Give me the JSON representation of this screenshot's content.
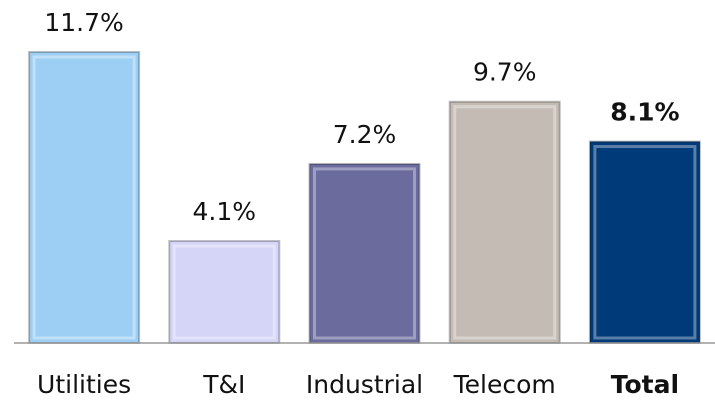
{
  "chart_data": {
    "type": "bar",
    "categories": [
      "Utilities",
      "T&I",
      "Industrial",
      "Telecom",
      "Total"
    ],
    "values": [
      11.7,
      4.1,
      7.2,
      9.7,
      8.1
    ],
    "value_labels": [
      "11.7%",
      "4.1%",
      "7.2%",
      "9.7%",
      "8.1%"
    ],
    "colors": [
      "#9dcff5",
      "#d5d5f7",
      "#6b6b9e",
      "#c4bcb4",
      "#003a78"
    ],
    "bold": [
      false,
      false,
      false,
      false,
      true
    ]
  }
}
